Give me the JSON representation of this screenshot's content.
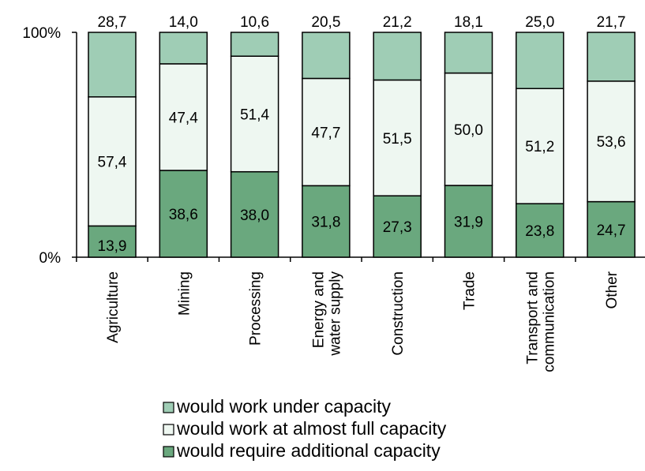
{
  "chart_data": {
    "type": "bar",
    "stacked": true,
    "percent_stacked": true,
    "categories": [
      [
        "Agriculture"
      ],
      [
        "Mining"
      ],
      [
        "Processing"
      ],
      [
        "Energy and",
        "water supply"
      ],
      [
        "Construction"
      ],
      [
        "Trade"
      ],
      [
        "Transport and",
        "communication"
      ],
      [
        "Other"
      ]
    ],
    "series": [
      {
        "name": "would require additional capacity",
        "color": "#6aa87e",
        "values": [
          13.9,
          38.6,
          38.0,
          31.8,
          27.3,
          31.9,
          23.8,
          24.7
        ],
        "labels": [
          "13,9",
          "38,6",
          "38,0",
          "31,8",
          "27,3",
          "31,9",
          "23,8",
          "24,7"
        ]
      },
      {
        "name": "would work at almost full capacity",
        "color": "#eef7f1",
        "values": [
          57.4,
          47.4,
          51.4,
          47.7,
          51.5,
          50.0,
          51.2,
          53.6
        ],
        "labels": [
          "57,4",
          "47,4",
          "51,4",
          "47,7",
          "51,5",
          "50,0",
          "51,2",
          "53,6"
        ]
      },
      {
        "name": "would work under capacity",
        "color": "#9fcdb5",
        "values": [
          28.7,
          14.0,
          10.6,
          20.5,
          21.2,
          18.1,
          25.0,
          21.7
        ],
        "labels": [
          "28,7",
          "14,0",
          "10,6",
          "20,5",
          "21,2",
          "18,1",
          "25,0",
          "21,7"
        ]
      }
    ],
    "yticks": [
      "0%",
      "100%"
    ],
    "ylim": [
      0,
      100
    ],
    "grid": false,
    "legend_position": "bottom",
    "title": "",
    "xlabel": "",
    "ylabel": ""
  }
}
